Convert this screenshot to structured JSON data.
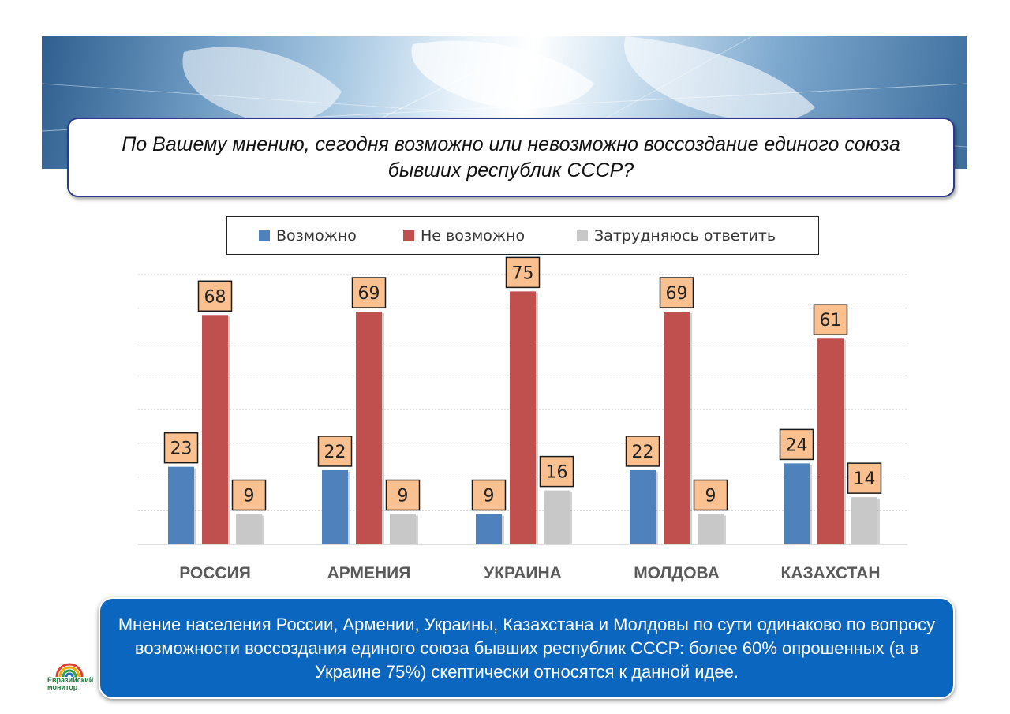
{
  "question": "По Вашему мнению, сегодня возможно или невозможно воссоздание единого союза бывших республик СССР?",
  "summary": "Мнение населения России, Армении, Украины, Казахстана и Молдовы по сути одинаково по вопросу возможности воссоздания единого союза бывших республик СССР: более 60% опрошенных (а в Украине 75%) скептически относятся к данной идее.",
  "logo": {
    "line1": "Евразийский",
    "line2": "монитор"
  },
  "colors": {
    "possible": "#4f81bd",
    "impossible": "#c0504d",
    "unsure": "#c8c8c8",
    "label_bg": "#fac090"
  },
  "chart_data": {
    "type": "bar",
    "title": "",
    "xlabel": "",
    "ylabel": "",
    "ylim": [
      0,
      80
    ],
    "grid": true,
    "legend": "top",
    "categories": [
      "РОССИЯ",
      "АРМЕНИЯ",
      "УКРАИНА",
      "МОЛДОВА",
      "КАЗАХСТАН"
    ],
    "series": [
      {
        "name": "Возможно",
        "values": [
          23,
          22,
          9,
          22,
          24
        ]
      },
      {
        "name": "Не возможно",
        "values": [
          68,
          69,
          75,
          69,
          61
        ]
      },
      {
        "name": "Затрудняюсь ответить",
        "values": [
          9,
          9,
          16,
          9,
          14
        ]
      }
    ]
  }
}
